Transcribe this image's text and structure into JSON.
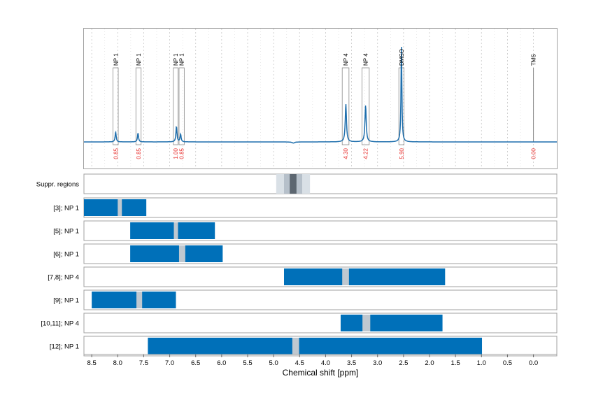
{
  "chart_data": {
    "type": "line",
    "xlabel": "Chemical shift [ppm]",
    "xlim": [
      8.65,
      -0.45
    ],
    "x_ticks": [
      "8.5",
      "8.0",
      "7.5",
      "7.0",
      "6.5",
      "6.0",
      "5.5",
      "5.0",
      "4.5",
      "4.0",
      "3.5",
      "3.0",
      "2.5",
      "2.0",
      "1.5",
      "1.0",
      "0.5",
      "0.0"
    ],
    "x_tick_values": [
      8.5,
      8.0,
      7.5,
      7.0,
      6.5,
      6.0,
      5.5,
      5.0,
      4.5,
      4.0,
      3.5,
      3.0,
      2.5,
      2.0,
      1.5,
      1.0,
      0.5,
      0.0
    ],
    "grid": true,
    "colors": {
      "spectrum": "#1f6fad",
      "bar": "#0070b9",
      "integral_text": "#e8312f",
      "gap": "#bfc8d0",
      "supp_light": "#d9e0e6",
      "supp_mid": "#b6c0ca",
      "supp_dark": "#5c6670",
      "frame": "#a0a0a0"
    },
    "spectrum": {
      "peaks": [
        {
          "ppm": 8.04,
          "height": 0.09,
          "width": 0.012
        },
        {
          "ppm": 7.61,
          "height": 0.08,
          "width": 0.012
        },
        {
          "ppm": 6.87,
          "height": 0.14,
          "width": 0.012
        },
        {
          "ppm": 6.79,
          "height": 0.07,
          "width": 0.012
        },
        {
          "ppm": 3.61,
          "height": 0.34,
          "width": 0.014
        },
        {
          "ppm": 3.23,
          "height": 0.33,
          "width": 0.014
        },
        {
          "ppm": 2.54,
          "height": 0.87,
          "width": 0.01
        }
      ],
      "dips": [
        {
          "ppm": 4.62,
          "depth": 0.01
        }
      ]
    },
    "annotations": [
      {
        "label": "NP 1",
        "integral": "0.85",
        "from": 8.09,
        "to": 7.99
      },
      {
        "label": "NP 1",
        "integral": "0.85",
        "from": 7.65,
        "to": 7.55
      },
      {
        "label": "NP 1",
        "integral": "1.00",
        "from": 6.93,
        "to": 6.84
      },
      {
        "label": "NP 1",
        "integral": "0.85",
        "from": 6.82,
        "to": 6.72
      },
      {
        "label": "NP 4",
        "integral": "4.30",
        "from": 3.68,
        "to": 3.55
      },
      {
        "label": "NP 4",
        "integral": "4.22",
        "from": 3.3,
        "to": 3.16
      },
      {
        "label": "DMSO",
        "integral": "5.90",
        "from": 2.59,
        "to": 2.49
      },
      {
        "label": "TMS",
        "integral": "0.00",
        "from": 0.02,
        "to": -0.02
      }
    ],
    "tms_line_ppm": 0.0,
    "suppressed_regions": {
      "label": "Suppr. regions",
      "outer": [
        4.95,
        4.3
      ],
      "mid": [
        4.8,
        4.45
      ],
      "inner": [
        4.69,
        4.56
      ]
    },
    "rows": [
      {
        "label": "[3]; NP 1",
        "from": 8.65,
        "to": 7.45,
        "gap": [
          8.0,
          7.92
        ]
      },
      {
        "label": "[5]; NP 1",
        "from": 7.76,
        "to": 6.13,
        "gap": [
          6.92,
          6.84
        ]
      },
      {
        "label": "[6]; NP 1",
        "from": 7.76,
        "to": 5.98,
        "gap": [
          6.82,
          6.7
        ]
      },
      {
        "label": "[7,8]; NP 4",
        "from": 4.8,
        "to": 1.7,
        "gap": [
          3.68,
          3.55
        ]
      },
      {
        "label": "[9]; NP 1",
        "from": 8.5,
        "to": 6.88,
        "gap": [
          7.64,
          7.53
        ]
      },
      {
        "label": "[10,11]; NP 4",
        "from": 3.71,
        "to": 1.75,
        "gap": [
          3.29,
          3.14
        ]
      },
      {
        "label": "[12]; NP 1",
        "from": 7.42,
        "to": 0.99,
        "gap": [
          4.64,
          4.51
        ]
      }
    ]
  }
}
